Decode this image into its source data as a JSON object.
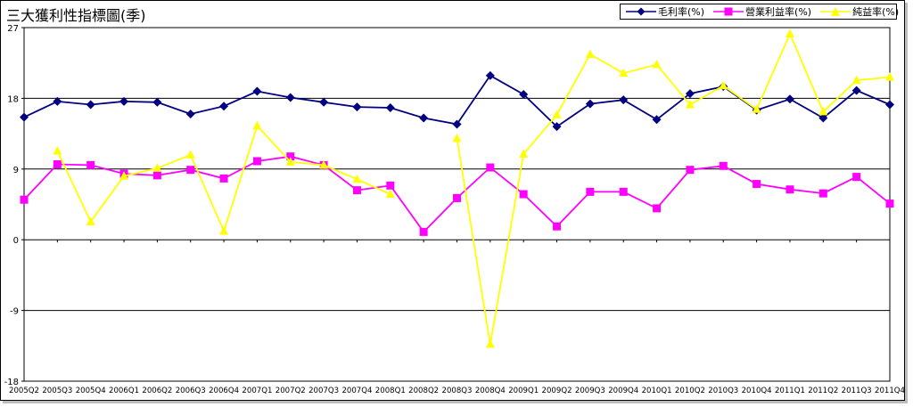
{
  "chart_data": {
    "type": "line",
    "title": "三大獲利性指標圖(季)",
    "categories": [
      "2005Q2",
      "2005Q3",
      "2005Q4",
      "2006Q1",
      "2006Q2",
      "2006Q3",
      "2006Q4",
      "2007Q1",
      "2007Q2",
      "2007Q3",
      "2007Q4",
      "2008Q1",
      "2008Q2",
      "2008Q3",
      "2008Q4",
      "2009Q1",
      "2009Q2",
      "2009Q3",
      "2009Q4",
      "2010Q1",
      "2010Q2",
      "2010Q3",
      "2010Q4",
      "2011Q1",
      "2011Q2",
      "2011Q3",
      "2011Q4"
    ],
    "ylim": [
      -18,
      27
    ],
    "yticks": [
      -18,
      -9,
      0,
      9,
      18,
      27
    ],
    "grid": true,
    "legend_position": "top-right",
    "series": [
      {
        "name": "毛利率(%)",
        "color": "#000080",
        "marker": "diamond",
        "values": [
          15.6,
          17.6,
          17.2,
          17.6,
          17.5,
          16.0,
          17.0,
          18.9,
          18.1,
          17.5,
          16.9,
          16.8,
          15.5,
          14.7,
          20.9,
          18.5,
          14.4,
          17.3,
          17.8,
          15.3,
          18.6,
          19.5,
          16.5,
          17.9,
          15.5,
          19.0,
          17.2
        ]
      },
      {
        "name": "營業利益率(%)",
        "color": "#ff00ff",
        "marker": "square",
        "values": [
          5.1,
          9.6,
          9.5,
          8.4,
          8.2,
          8.9,
          7.8,
          10.0,
          10.6,
          9.5,
          6.3,
          6.9,
          1.0,
          5.3,
          9.2,
          5.8,
          1.7,
          6.1,
          6.1,
          4.0,
          8.9,
          9.4,
          7.1,
          6.4,
          5.9,
          8.0,
          4.6
        ]
      },
      {
        "name": "純益率(%)",
        "color": "#ffff00",
        "marker": "triangle",
        "values": [
          null,
          11.3,
          2.3,
          8.1,
          9.1,
          10.8,
          1.1,
          14.5,
          9.9,
          9.5,
          7.7,
          5.8,
          null,
          12.9,
          -13.3,
          10.9,
          15.9,
          23.6,
          21.2,
          22.3,
          17.2,
          19.6,
          16.6,
          26.2,
          16.3,
          20.3,
          20.7
        ]
      }
    ]
  }
}
